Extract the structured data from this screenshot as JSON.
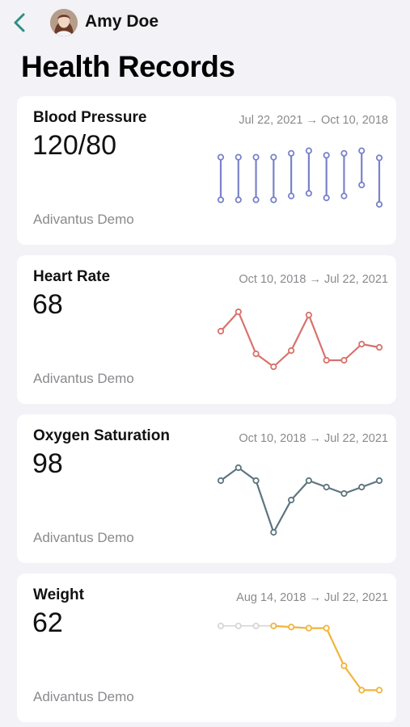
{
  "header": {
    "user_name": "Amy Doe",
    "title": "Health Records",
    "accent_color": "#2f8f84"
  },
  "cards": [
    {
      "title": "Blood Pressure",
      "value": "120/80",
      "source": "Adivantus Demo",
      "date_range": "Jul 22, 2021 → Oct 10, 2018",
      "color": "#7a82c8",
      "chart_data": {
        "type": "range-bar",
        "series": [
          {
            "values": [
              [
                32,
                98
              ],
              [
                32,
                98
              ],
              [
                32,
                98
              ],
              [
                32,
                98
              ],
              [
                38,
                104
              ],
              [
                42,
                108
              ],
              [
                35,
                101
              ],
              [
                38,
                104
              ],
              [
                55,
                108
              ],
              [
                25,
                97
              ]
            ]
          }
        ]
      }
    },
    {
      "title": "Heart Rate",
      "value": "68",
      "source": "Adivantus Demo",
      "date_range": "Oct 10, 2018 → Jul 22, 2021",
      "color": "#d9716c",
      "chart_data": {
        "type": "line",
        "series": [
          {
            "values": [
              73,
              79,
              66,
              62,
              67,
              78,
              64,
              64,
              69,
              68
            ]
          }
        ],
        "ylim": [
          58,
          82
        ]
      }
    },
    {
      "title": "Oxygen Saturation",
      "value": "98",
      "source": "Adivantus Demo",
      "date_range": "Oct 10, 2018 → Jul 22, 2021",
      "color": "#5d7580",
      "chart_data": {
        "type": "line",
        "series": [
          {
            "values": [
              98,
              99,
              98,
              94,
              96.5,
              98,
              97.5,
              97,
              97.5,
              98
            ]
          }
        ],
        "ylim": [
          93.5,
          99.5
        ]
      }
    },
    {
      "title": "Weight",
      "value": "62",
      "source": "Adivantus Demo",
      "date_range": "Aug 14, 2018 → Jul 22, 2021",
      "color": "#f2b43c",
      "faded_color": "#d6d6d6",
      "chart_data": {
        "type": "line",
        "faded_points": 3,
        "series": [
          {
            "values": [
              68,
              68,
              68,
              68,
              67.9,
              67.8,
              67.8,
              64.4,
              62.2,
              62.2
            ]
          }
        ],
        "ylim": [
          61.5,
          68.5
        ]
      }
    }
  ]
}
